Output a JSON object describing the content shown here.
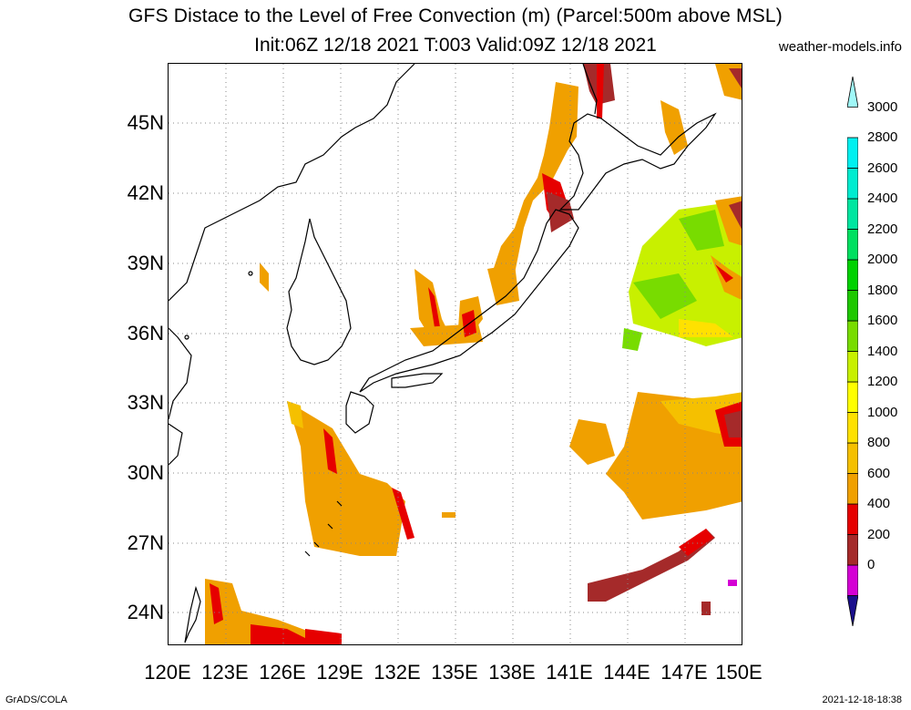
{
  "title": {
    "line1": "GFS Distace to the Level of Free Convection (m) (Parcel:500m above MSL)",
    "line2": "Init:06Z 12/18 2021 T:003 Valid:09Z 12/18 2021",
    "site": "weather-models.info"
  },
  "footer": {
    "left": "GrADS/COLA",
    "right": "2021-12-18-18:38"
  },
  "axes": {
    "lat_labels": [
      "45N",
      "42N",
      "39N",
      "36N",
      "33N",
      "30N",
      "27N",
      "24N"
    ],
    "lon_labels": [
      "120E",
      "123E",
      "126E",
      "129E",
      "132E",
      "135E",
      "138E",
      "141E",
      "144E",
      "147E",
      "150E"
    ]
  },
  "colorbar": {
    "labels": [
      "3000",
      "2800",
      "2600",
      "2400",
      "2200",
      "2000",
      "1800",
      "1600",
      "1400",
      "1200",
      "1000",
      "800",
      "600",
      "400",
      "200",
      "0"
    ],
    "colors": [
      "#1a0f8c",
      "#d400d4",
      "#a52a2a",
      "#e60000",
      "#f0a000",
      "#f5c000",
      "#ffe100",
      "#ffff00",
      "#c8f000",
      "#78dc00",
      "#1ec800",
      "#00d200",
      "#00e060",
      "#00e6a0",
      "#00ecd0",
      "#00f0f0",
      "#a0f8f8"
    ]
  }
}
